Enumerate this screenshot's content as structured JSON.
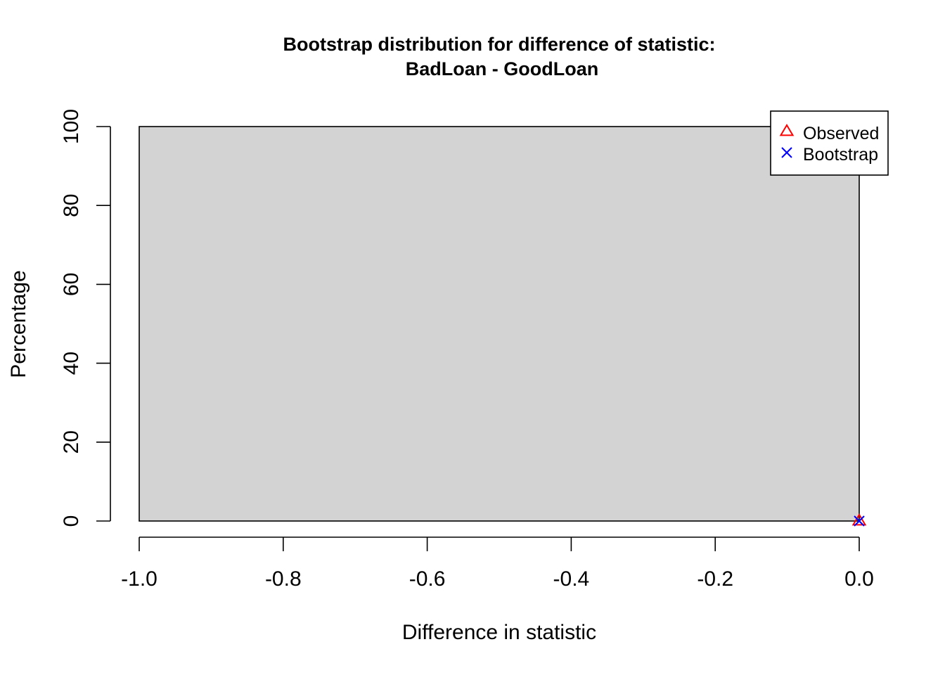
{
  "chart_data": {
    "type": "bar",
    "title": "Bootstrap distribution for difference of statistic:",
    "subtitle": "BadLoan - GoodLoan",
    "xlabel": "Difference in statistic",
    "ylabel": "Percentage",
    "xlim": [
      -1.0,
      0.0
    ],
    "ylim": [
      0,
      100
    ],
    "x_ticks": [
      "-1.0",
      "-0.8",
      "-0.6",
      "-0.4",
      "-0.2",
      "0.0"
    ],
    "y_ticks": [
      "0",
      "20",
      "40",
      "60",
      "80",
      "100"
    ],
    "bins": [
      {
        "from": -1.0,
        "to": 0.0,
        "value": 100
      }
    ],
    "bar_fill": "#d3d3d3",
    "points": [
      {
        "series": "Observed",
        "x": 0.0,
        "y": 0,
        "marker": "triangle",
        "color": "#ff0000"
      },
      {
        "series": "Bootstrap",
        "x": 0.0,
        "y": 0,
        "marker": "x",
        "color": "#0000ff"
      }
    ],
    "legend": {
      "position": "top-right",
      "entries": [
        {
          "label": "Observed",
          "marker": "triangle",
          "color": "#ff0000"
        },
        {
          "label": "Bootstrap",
          "marker": "x",
          "color": "#0000ff"
        }
      ]
    },
    "grid": false
  }
}
